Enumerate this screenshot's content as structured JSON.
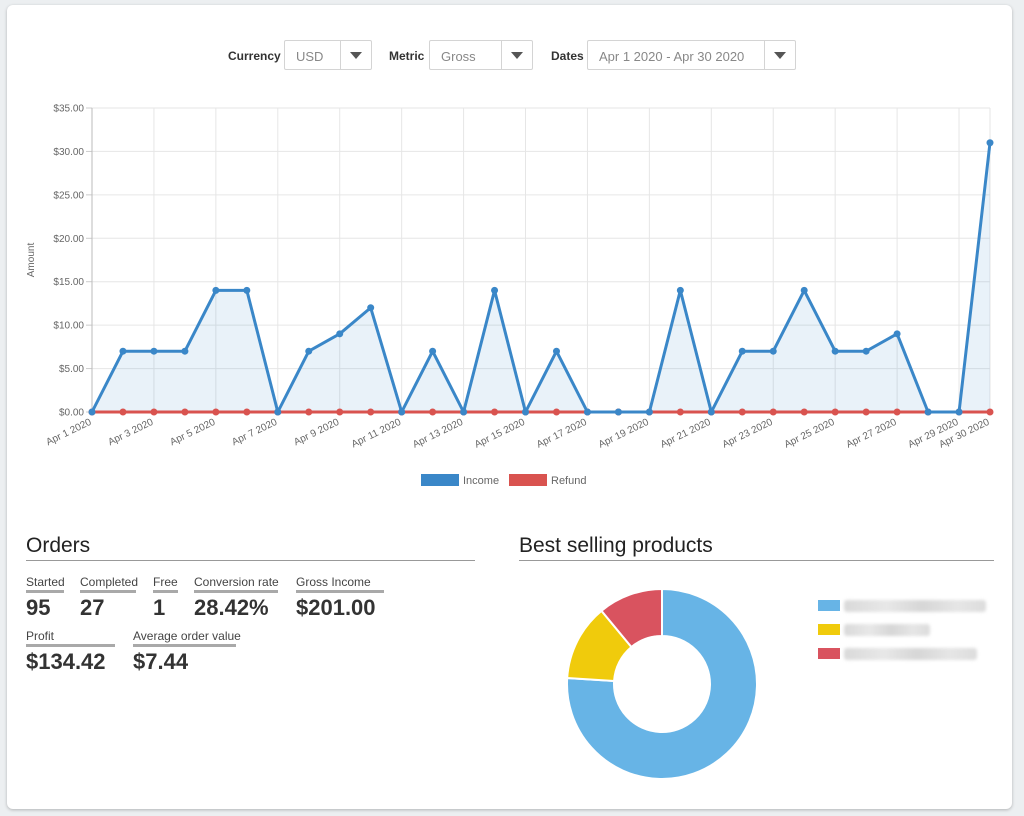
{
  "filters": {
    "currency": {
      "label": "Currency",
      "value": "USD"
    },
    "metric": {
      "label": "Metric",
      "value": "Gross"
    },
    "dates": {
      "label": "Dates",
      "value": "Apr 1 2020 - Apr 30 2020"
    }
  },
  "chart_data": [
    {
      "type": "line",
      "title": "",
      "xlabel": "",
      "ylabel": "Amount",
      "ylim": [
        0,
        35
      ],
      "y_ticks": [
        "$0.00",
        "$5.00",
        "$10.00",
        "$15.00",
        "$20.00",
        "$25.00",
        "$30.00",
        "$35.00"
      ],
      "x": [
        "Apr 1 2020",
        "Apr 2 2020",
        "Apr 3 2020",
        "Apr 4 2020",
        "Apr 5 2020",
        "Apr 6 2020",
        "Apr 7 2020",
        "Apr 8 2020",
        "Apr 9 2020",
        "Apr 10 2020",
        "Apr 11 2020",
        "Apr 12 2020",
        "Apr 13 2020",
        "Apr 14 2020",
        "Apr 15 2020",
        "Apr 16 2020",
        "Apr 17 2020",
        "Apr 18 2020",
        "Apr 19 2020",
        "Apr 20 2020",
        "Apr 21 2020",
        "Apr 22 2020",
        "Apr 23 2020",
        "Apr 24 2020",
        "Apr 25 2020",
        "Apr 26 2020",
        "Apr 27 2020",
        "Apr 28 2020",
        "Apr 29 2020",
        "Apr 30 2020"
      ],
      "x_tick_labels": [
        "Apr 1 2020",
        "Apr 3 2020",
        "Apr 5 2020",
        "Apr 7 2020",
        "Apr 9 2020",
        "Apr 11 2020",
        "Apr 13 2020",
        "Apr 15 2020",
        "Apr 17 2020",
        "Apr 19 2020",
        "Apr 21 2020",
        "Apr 23 2020",
        "Apr 25 2020",
        "Apr 27 2020",
        "Apr 29 2020",
        "Apr 30 2020"
      ],
      "series": [
        {
          "name": "Income",
          "color": "#3a87c8",
          "values": [
            0,
            7,
            7,
            7,
            14,
            14,
            0,
            7,
            9,
            12,
            0,
            7,
            0,
            14,
            0,
            7,
            0,
            0,
            0,
            14,
            0,
            7,
            7,
            14,
            7,
            7,
            9,
            0,
            0,
            31
          ]
        },
        {
          "name": "Refund",
          "color": "#d9534f",
          "values": [
            0,
            0,
            0,
            0,
            0,
            0,
            0,
            0,
            0,
            0,
            0,
            0,
            0,
            0,
            0,
            0,
            0,
            0,
            0,
            0,
            0,
            0,
            0,
            0,
            0,
            0,
            0,
            0,
            0,
            0
          ]
        }
      ],
      "grid": true,
      "legend": "bottom"
    },
    {
      "type": "pie",
      "title": "Best selling products",
      "slices": [
        {
          "value": 76,
          "color": "#67b4e6"
        },
        {
          "value": 13,
          "color": "#f0cb0c"
        },
        {
          "value": 11,
          "color": "#d9535f"
        }
      ]
    }
  ],
  "orders": {
    "title": "Orders",
    "stats": [
      {
        "label": "Started",
        "value": "95"
      },
      {
        "label": "Completed",
        "value": "27"
      },
      {
        "label": "Free",
        "value": "1"
      },
      {
        "label": "Conversion rate",
        "value": "28.42%"
      },
      {
        "label": "Gross Income",
        "value": "$201.00"
      },
      {
        "label": "Profit",
        "value": "$134.42"
      },
      {
        "label": "Average order value",
        "value": "$7.44"
      }
    ]
  },
  "best_selling": {
    "title": "Best selling products"
  }
}
